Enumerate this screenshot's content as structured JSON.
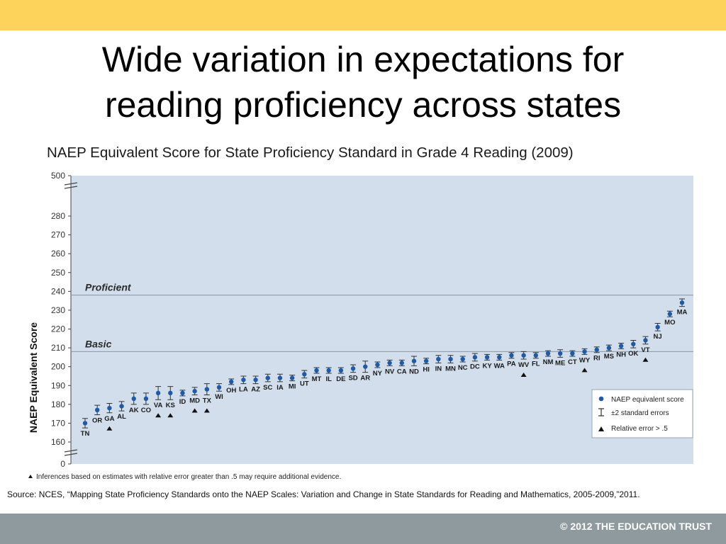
{
  "slide": {
    "title_line1": "Wide variation in expectations for",
    "title_line2": "reading proficiency across states",
    "source": "Source:  NCES, “Mapping State Proficiency Standards onto the NAEP Scales: Variation and Change in State Standards for Reading and Mathematics, 2005-2009,”2011.",
    "copyright": "© 2012 THE EDUCATION TRUST"
  },
  "colors": {
    "top_bar": "#fdd35c",
    "bottom_bar": "#8f9a9f",
    "plot_bg": "#d3deec",
    "point": "#1f5aa6"
  },
  "chart_data": {
    "type": "scatter",
    "title": "NAEP Equivalent Score for State Proficiency Standard in Grade 4 Reading (2009)",
    "ylabel": "NAEP Equivalent Score",
    "xlabel": "",
    "ylim": [
      160,
      280
    ],
    "y_axis_break": {
      "top_label": "500",
      "bottom_label": "0"
    },
    "yticks": [
      "500",
      "280",
      "270",
      "260",
      "250",
      "240",
      "230",
      "220",
      "210",
      "200",
      "190",
      "180",
      "170",
      "160",
      "0"
    ],
    "reference_lines": [
      {
        "label": "Proficient",
        "value": 238
      },
      {
        "label": "Basic",
        "value": 208
      }
    ],
    "legend": {
      "position": "bottom-right",
      "items": [
        "NAEP equivalent score",
        "±2  standard errors",
        "Relative error > .5"
      ]
    },
    "footnote": "Inferences based on estimates with relative error greater than .5 may require additional evidence.",
    "points": [
      {
        "state": "TN",
        "value": 170,
        "se": 2.5,
        "flag": false
      },
      {
        "state": "OR",
        "value": 177,
        "se": 2.5,
        "flag": false
      },
      {
        "state": "GA",
        "value": 178,
        "se": 2.5,
        "flag": true
      },
      {
        "state": "AL",
        "value": 179,
        "se": 2.5,
        "flag": false
      },
      {
        "state": "AK",
        "value": 183,
        "se": 3,
        "flag": false
      },
      {
        "state": "CO",
        "value": 183,
        "se": 3,
        "flag": false
      },
      {
        "state": "VA",
        "value": 186,
        "se": 3.5,
        "flag": true
      },
      {
        "state": "KS",
        "value": 186,
        "se": 3.5,
        "flag": true
      },
      {
        "state": "ID",
        "value": 186,
        "se": 1.5,
        "flag": false
      },
      {
        "state": "MD",
        "value": 187,
        "se": 2,
        "flag": true
      },
      {
        "state": "TX",
        "value": 188,
        "se": 3,
        "flag": true
      },
      {
        "state": "WI",
        "value": 189,
        "se": 2,
        "flag": false
      },
      {
        "state": "OH",
        "value": 192,
        "se": 1.5,
        "flag": false
      },
      {
        "state": "LA",
        "value": 193,
        "se": 2,
        "flag": false
      },
      {
        "state": "AZ",
        "value": 193,
        "se": 2,
        "flag": false
      },
      {
        "state": "SC",
        "value": 194,
        "se": 2,
        "flag": false
      },
      {
        "state": "IA",
        "value": 194,
        "se": 2,
        "flag": false
      },
      {
        "state": "MI",
        "value": 194,
        "se": 1.5,
        "flag": false
      },
      {
        "state": "UT",
        "value": 196,
        "se": 2,
        "flag": false
      },
      {
        "state": "MT",
        "value": 198,
        "se": 1.5,
        "flag": false
      },
      {
        "state": "IL",
        "value": 198,
        "se": 1.5,
        "flag": false
      },
      {
        "state": "DE",
        "value": 198,
        "se": 1.5,
        "flag": false
      },
      {
        "state": "SD",
        "value": 199,
        "se": 2,
        "flag": false
      },
      {
        "state": "AR",
        "value": 200,
        "se": 3,
        "flag": false
      },
      {
        "state": "NY",
        "value": 201,
        "se": 1.5,
        "flag": false
      },
      {
        "state": "NV",
        "value": 202,
        "se": 1.5,
        "flag": false
      },
      {
        "state": "CA",
        "value": 202,
        "se": 1.5,
        "flag": false
      },
      {
        "state": "ND",
        "value": 203,
        "se": 2.5,
        "flag": false
      },
      {
        "state": "HI",
        "value": 203,
        "se": 1.5,
        "flag": false
      },
      {
        "state": "IN",
        "value": 204,
        "se": 2,
        "flag": false
      },
      {
        "state": "MN",
        "value": 204,
        "se": 2,
        "flag": false
      },
      {
        "state": "NC",
        "value": 204,
        "se": 1.5,
        "flag": false
      },
      {
        "state": "DC",
        "value": 205,
        "se": 2,
        "flag": false
      },
      {
        "state": "KY",
        "value": 205,
        "se": 1.5,
        "flag": false
      },
      {
        "state": "WA",
        "value": 205,
        "se": 1.5,
        "flag": false
      },
      {
        "state": "PA",
        "value": 206,
        "se": 1.5,
        "flag": false
      },
      {
        "state": "WV",
        "value": 206,
        "se": 2,
        "flag": true
      },
      {
        "state": "FL",
        "value": 206,
        "se": 1.5,
        "flag": false
      },
      {
        "state": "NM",
        "value": 207,
        "se": 1.5,
        "flag": false
      },
      {
        "state": "ME",
        "value": 207,
        "se": 2,
        "flag": false
      },
      {
        "state": "CT",
        "value": 207,
        "se": 1.5,
        "flag": false
      },
      {
        "state": "WY",
        "value": 208,
        "se": 1.5,
        "flag": true
      },
      {
        "state": "RI",
        "value": 209,
        "se": 1.5,
        "flag": false
      },
      {
        "state": "MS",
        "value": 210,
        "se": 1.5,
        "flag": false
      },
      {
        "state": "NH",
        "value": 211,
        "se": 1.5,
        "flag": false
      },
      {
        "state": "OK",
        "value": 212,
        "se": 2,
        "flag": false
      },
      {
        "state": "VT",
        "value": 214,
        "se": 2,
        "flag": true
      },
      {
        "state": "NJ",
        "value": 221,
        "se": 2,
        "flag": false
      },
      {
        "state": "MO",
        "value": 228,
        "se": 1.5,
        "flag": false
      },
      {
        "state": "MA",
        "value": 234,
        "se": 2,
        "flag": false
      }
    ]
  }
}
